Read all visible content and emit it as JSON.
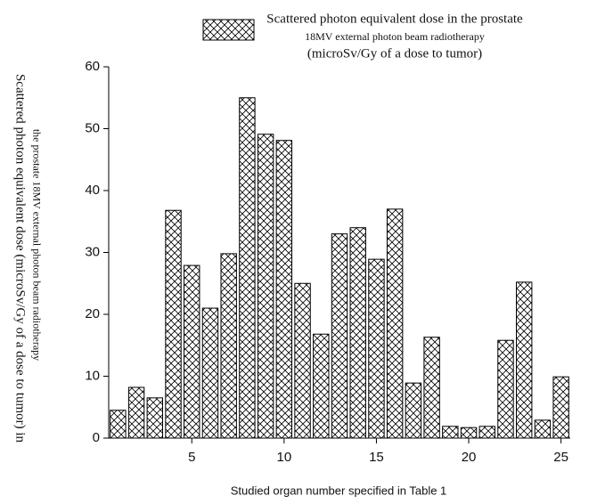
{
  "chart_data": {
    "type": "bar",
    "legend": [
      "Scattered photon equivalent dose in the prostate",
      "18MV external photon beam radiotherapy",
      "(microSv/Gy of a dose to tumor)"
    ],
    "y_label": [
      "Scattered photon equivalent dose (microSv/Gy of a dose to tumor) in",
      "the prostate 18MV external photon beam radiotherapy"
    ],
    "x_label": "Studied organ number specified in Table 1",
    "x": [
      1,
      2,
      3,
      4,
      5,
      6,
      7,
      8,
      9,
      10,
      11,
      12,
      13,
      14,
      15,
      16,
      17,
      18,
      19,
      20,
      21,
      22,
      23,
      24,
      25
    ],
    "values": [
      4.5,
      8.2,
      6.5,
      36.8,
      27.9,
      21,
      29.8,
      55,
      49.1,
      48.1,
      25,
      16.8,
      33,
      34,
      28.9,
      37,
      8.9,
      16.3,
      1.9,
      1.7,
      1.9,
      15.8,
      25.2,
      2.9,
      9.9
    ],
    "xlim": [
      0.5,
      25.5
    ],
    "xticks": [
      5,
      10,
      15,
      20,
      25
    ],
    "ylim": [
      0,
      60
    ],
    "yticks": [
      0,
      10,
      20,
      30,
      40,
      50,
      60
    ],
    "color": "#000000",
    "pattern": "crosshatch"
  }
}
